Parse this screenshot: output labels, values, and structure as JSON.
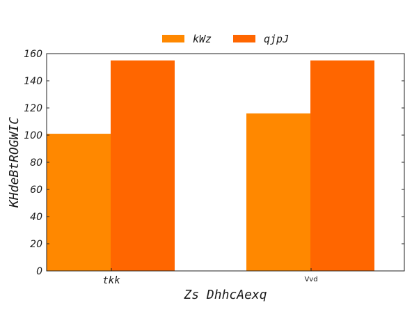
{
  "chart_data": {
    "type": "bar",
    "categories": [
      "tkk",
      "Vvd"
    ],
    "series": [
      {
        "name": "kWz",
        "values": [
          101,
          116
        ],
        "color": "#ff8800"
      },
      {
        "name": "qjpJ",
        "values": [
          155,
          155
        ],
        "color": "#ff6600"
      }
    ],
    "title": "",
    "xlabel": "Zs DhhcAexq",
    "ylabel": "KHdeBtROGWIC",
    "ylim": [
      0,
      160
    ],
    "yticks": [
      0,
      20,
      40,
      60,
      80,
      100,
      120,
      140,
      160
    ],
    "grid": false,
    "legend_position": "top-center"
  }
}
